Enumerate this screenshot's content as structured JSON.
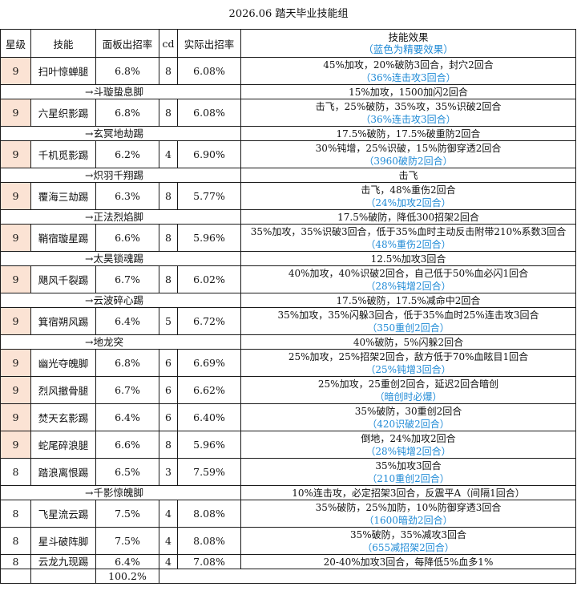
{
  "title": "2026.06 踏天毕业技能组",
  "headers": {
    "star": "星级",
    "skill": "技能",
    "panel_rate": "面板出招率",
    "cd": "cd",
    "actual_rate": "实际出招率",
    "effect": "技能效果",
    "effect_note": "（蓝色为精要效果）"
  },
  "rows": [
    {
      "type": "main",
      "star": "9",
      "star_color": "#fbe3d4",
      "name": "扫叶惊蝉腿",
      "panel": "6.8%",
      "cd": "8",
      "actual": "6.08%",
      "effect": "45%加攻，20%破防3回合，封穴2回合",
      "effect_blue": "（36%连击攻3回合）"
    },
    {
      "type": "sub",
      "name": "→斗璇蛰息脚",
      "effect": "15%加攻，1500加闪2回合"
    },
    {
      "type": "main",
      "star": "9",
      "star_color": "#fbe3d4",
      "name": "六星织影踢",
      "panel": "6.8%",
      "cd": "8",
      "actual": "6.08%",
      "effect": "击飞，25%破防，35%攻，35%识破2回合",
      "effect_blue": "（36%连击攻3回合）"
    },
    {
      "type": "sub",
      "name": "→玄冥地劫踢",
      "effect": "17.5%破防，17.5%破重防2回合"
    },
    {
      "type": "main",
      "star": "9",
      "star_color": "#fbe3d4",
      "name": "千机觅影踢",
      "panel": "6.2%",
      "cd": "4",
      "actual": "6.90%",
      "effect": "30%钝增，25%识破，15%防御穿透2回合",
      "effect_blue": "（3960破防2回合）"
    },
    {
      "type": "sub",
      "name": "→炽羽千翔踢",
      "effect": "击飞"
    },
    {
      "type": "main",
      "star": "9",
      "star_color": "#fbe3d4",
      "name": "覆海三劫踢",
      "panel": "6.3%",
      "cd": "8",
      "actual": "5.77%",
      "effect": "击飞，48%重伤2回合",
      "effect_blue": "（24%加攻2回合）"
    },
    {
      "type": "sub",
      "name": "→正法烈焰脚",
      "effect": "17.5%破防，降低300招架2回合"
    },
    {
      "type": "main",
      "star": "9",
      "star_color": "#fbe3d4",
      "name": "鞘宿璇星踢",
      "panel": "6.6%",
      "cd": "8",
      "actual": "5.96%",
      "effect": "35%加攻，35%识破3回合，低于35%血时主动反击附带210%系数3回合",
      "effect_blue": "（48%重伤2回合）"
    },
    {
      "type": "sub",
      "name": "→太昊锁魂踢",
      "effect": "12.5%加攻3回合"
    },
    {
      "type": "main",
      "star": "9",
      "star_color": "#fbe3d4",
      "name": "飓风千裂踢",
      "panel": "6.7%",
      "cd": "8",
      "actual": "6.02%",
      "effect": "40%加攻，40%识破2回合，自己低于50%血必闪1回合",
      "effect_blue": "（28%钝增2回合）"
    },
    {
      "type": "sub",
      "name": "→云波碎心踢",
      "effect": "17.5%破防，17.5%减命中2回合"
    },
    {
      "type": "main",
      "star": "9",
      "star_color": "#fbe3d4",
      "name": "箕宿朔风踢",
      "panel": "6.4%",
      "cd": "5",
      "actual": "6.72%",
      "effect": "35%加攻，35%闪躲3回合，低于35%血时25%连击攻3回合",
      "effect_blue": "（350重创2回合）"
    },
    {
      "type": "sub",
      "name": "→地龙突",
      "effect": "40%破防，5%闪躲2回合"
    },
    {
      "type": "main",
      "star": "9",
      "star_color": "#fbe3d4",
      "name": "幽光夺魄脚",
      "panel": "6.8%",
      "cd": "6",
      "actual": "6.69%",
      "effect": "25%加攻，25%招架2回合，敌方低于70%血眩目1回合",
      "effect_blue": "（25%钝增3回合）"
    },
    {
      "type": "main",
      "star": "9",
      "star_color": "#fbe3d4",
      "name": "烈风撤骨腿",
      "panel": "6.7%",
      "cd": "6",
      "actual": "6.62%",
      "effect": "25%加攻，25重创2回合，延迟2回合暗创",
      "effect_blue": "（暗创时必爆）"
    },
    {
      "type": "main",
      "star": "9",
      "star_color": "#fbe3d4",
      "name": "焚天玄影踢",
      "panel": "6.4%",
      "cd": "6",
      "actual": "6.40%",
      "effect": "35%破防，30重创2回合",
      "effect_blue": "（420识破2回合）"
    },
    {
      "type": "main",
      "star": "9",
      "star_color": "#fbe3d4",
      "name": "蛇尾碎浪腿",
      "panel": "6.6%",
      "cd": "8",
      "actual": "5.96%",
      "effect": "倒地，24%加攻2回合",
      "effect_blue": "（28%钝增2回合）"
    },
    {
      "type": "main",
      "star": "8",
      "star_color": "#ffffff",
      "name": "踏浪离恨踢",
      "panel": "6.5%",
      "cd": "3",
      "actual": "7.59%",
      "effect": "35%加攻3回合",
      "effect_blue": "（210重创2回合）"
    },
    {
      "type": "sub",
      "name": "→千影惊魄脚",
      "effect": "10%连击攻，必定招架3回合，反震平A（间隔1回合）"
    },
    {
      "type": "main",
      "star": "8",
      "star_color": "#ffffff",
      "name": "飞星流云踢",
      "panel": "7.5%",
      "cd": "4",
      "actual": "8.08%",
      "effect": "35%破防，25%加防，10%防御穿透3回合",
      "effect_blue": "（1600暗劲2回合）"
    },
    {
      "type": "main",
      "star": "8",
      "star_color": "#ffffff",
      "name": "星斗破阵脚",
      "panel": "7.5%",
      "cd": "4",
      "actual": "8.08%",
      "effect": "35%破防，35%减攻3回合",
      "effect_blue": "（655减招架2回合）"
    },
    {
      "type": "single",
      "star": "8",
      "star_color": "#ffffff",
      "name": "云龙九现踢",
      "panel": "6.4%",
      "cd": "4",
      "actual": "7.08%",
      "effect": "20-40%加攻3回合，每降低5%血多1%"
    }
  ],
  "total_panel": "100.2%"
}
